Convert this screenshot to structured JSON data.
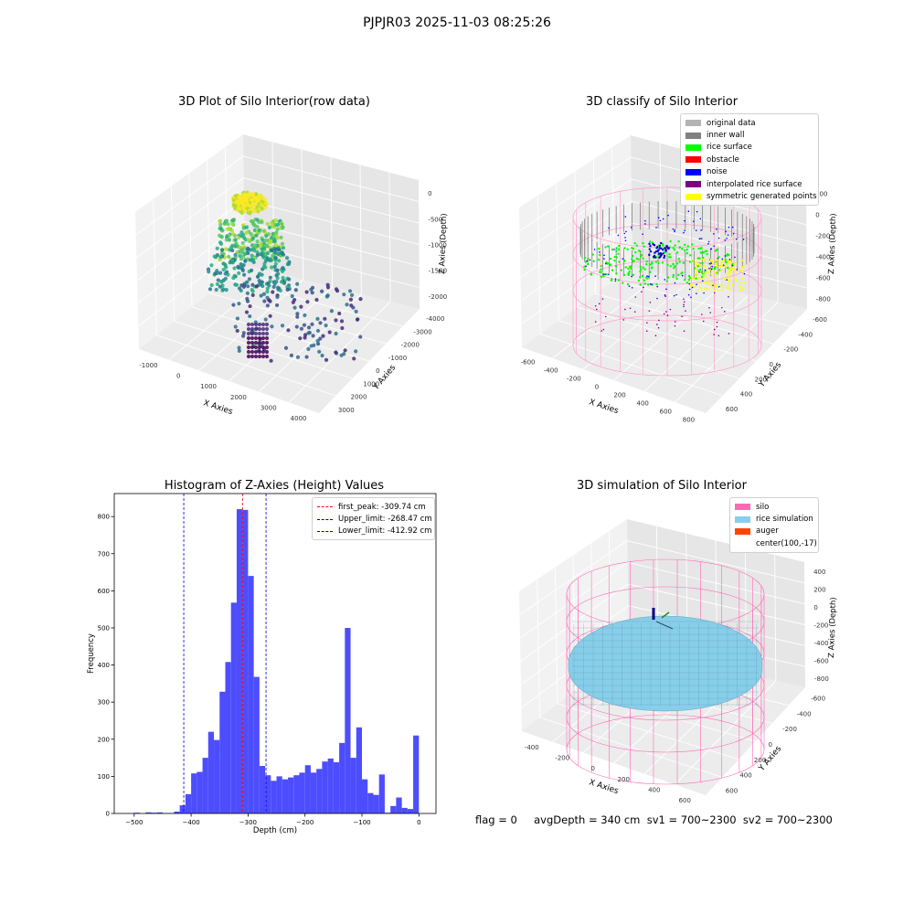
{
  "suptitle": "PJPJR03 2025-11-03 08:25:26",
  "footer": "flag = 0     avgDepth = 340 cm  sv1 = 700~2300  sv2 = 700~2300",
  "colors": {
    "original": "#b3b3b3",
    "inner_wall": "#808080",
    "rice_surface": "#00ff00",
    "obstacle": "#ff0000",
    "noise": "#0000ff",
    "interpolated": "#800080",
    "symmetric": "#ffff00",
    "hist": "#4d4dff",
    "silo": "#ff69b4",
    "rice_sim": "#87ceeb",
    "auger": "#ff4500"
  },
  "chart_data": [
    {
      "type": "scatter",
      "title": "3D Plot of Silo Interior(row data)",
      "xlabel": "X Axies",
      "ylabel": "Y Axies",
      "zlabel": "Z Axies (Depth)",
      "x_ticks": [
        "-1000",
        "0",
        "1000",
        "2000",
        "3000",
        "4000"
      ],
      "y_ticks": [
        "-4000",
        "-3000",
        "-2000",
        "-1000",
        "0",
        "1000",
        "2000",
        "3000"
      ],
      "z_ticks": [
        "-2000",
        "-1500",
        "-1000",
        "-500",
        "0"
      ],
      "colormap": "viridis",
      "grid": true
    },
    {
      "type": "scatter",
      "title": "3D classify of Silo Interior",
      "xlabel": "X Axies",
      "ylabel": "Y Axies",
      "zlabel": "Z Axies (Depth)",
      "x_ticks": [
        "-600",
        "-400",
        "-200",
        "0",
        "200",
        "400",
        "600",
        "800"
      ],
      "y_ticks": [
        "-600",
        "-400",
        "-200",
        "0",
        "200",
        "400",
        "600"
      ],
      "z_ticks": [
        "-800",
        "-600",
        "-400",
        "-200",
        "0",
        "200"
      ],
      "legend": [
        "original data",
        "inner wall",
        "rice surface",
        "obstacle",
        "noise",
        "interpolated rice surface",
        "symmetric generated points"
      ],
      "legend_position": "top-right",
      "grid": true
    },
    {
      "type": "bar",
      "title": "Histogram of Z-Axies (Height) Values",
      "xlabel": "Depth (cm)",
      "ylabel": "Frequency",
      "xlim": [
        -535,
        30
      ],
      "ylim": [
        0,
        862
      ],
      "bin_width": 10,
      "bin_starts": [
        -500,
        -490,
        -480,
        -470,
        -460,
        -450,
        -440,
        -430,
        -420,
        -410,
        -400,
        -390,
        -380,
        -370,
        -360,
        -350,
        -340,
        -330,
        -320,
        -310,
        -300,
        -290,
        -280,
        -270,
        -260,
        -250,
        -240,
        -230,
        -220,
        -210,
        -200,
        -190,
        -180,
        -170,
        -160,
        -150,
        -140,
        -130,
        -120,
        -110,
        -100,
        -90,
        -80,
        -70,
        -60,
        -50,
        -40,
        -30,
        -20,
        -10,
        0
      ],
      "values": [
        2,
        0,
        3,
        2,
        3,
        1,
        1,
        5,
        22,
        52,
        108,
        112,
        150,
        220,
        198,
        328,
        408,
        568,
        820,
        818,
        640,
        368,
        128,
        103,
        88,
        100,
        92,
        97,
        103,
        110,
        130,
        110,
        120,
        140,
        148,
        138,
        190,
        500,
        150,
        232,
        92,
        55,
        50,
        105,
        2,
        20,
        43,
        15,
        12,
        210,
        0
      ],
      "x_ticks": [
        -500,
        -400,
        -300,
        -200,
        -100,
        0
      ],
      "y_ticks": [
        0,
        100,
        200,
        300,
        400,
        500,
        600,
        700,
        800
      ],
      "vlines": [
        {
          "label": "first_peak: -309.74 cm",
          "x": -309.74,
          "color": "#ff0000"
        },
        {
          "label": "Upper_limit: -268.47 cm",
          "x": -268.47,
          "color": "#0000cc"
        },
        {
          "label": "Lower_limit: -412.92 cm",
          "x": -412.92,
          "color": "#0000cc"
        }
      ],
      "legend_position": "top-right"
    },
    {
      "type": "scatter",
      "title": "3D simulation of Silo Interior",
      "xlabel": "X Axies",
      "ylabel": "Y Axies",
      "zlabel": "Z Axies (Depth)",
      "x_ticks": [
        "-400",
        "-200",
        "0",
        "200",
        "400",
        "600"
      ],
      "y_ticks": [
        "-600",
        "-400",
        "-200",
        "0",
        "200",
        "400",
        "600"
      ],
      "z_ticks": [
        "-800",
        "-600",
        "-400",
        "-200",
        "0",
        "200",
        "400"
      ],
      "legend": [
        "silo",
        "rice simulation",
        "auger",
        "center(100,-17)"
      ],
      "legend_position": "top-right",
      "grid": true
    }
  ]
}
